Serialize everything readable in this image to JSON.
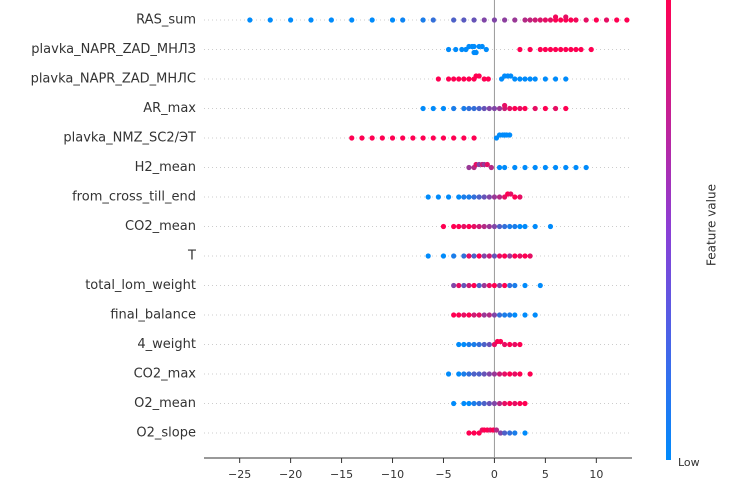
{
  "chart_data": {
    "type": "beeswarm",
    "xlim": [
      -28.5,
      13.5
    ],
    "xticks": [
      {
        "value": -25,
        "label": "−25"
      },
      {
        "value": -20,
        "label": "−20"
      },
      {
        "value": -15,
        "label": "−15"
      },
      {
        "value": -10,
        "label": "−10"
      },
      {
        "value": -5,
        "label": "−5"
      },
      0,
      5,
      10
    ],
    "colorbar": {
      "label": "Feature value",
      "low_label": "Low",
      "low_color": "#008bfb",
      "high_color": "#ff0052"
    },
    "series": [
      {
        "name": "RAS_sum",
        "values": [
          -24,
          -22,
          -20,
          -18,
          -16,
          -14,
          -12,
          -10,
          -9,
          -7,
          -6,
          -4,
          -3,
          -2,
          -1,
          0,
          1,
          2,
          3,
          3.5,
          4,
          4.5,
          5,
          5.5,
          6,
          6,
          6.5,
          7,
          7,
          7.5,
          8,
          9,
          10,
          11,
          12,
          13
        ],
        "feature_values": [
          0,
          0,
          0,
          0,
          0,
          0,
          0,
          0,
          0.05,
          0.1,
          0.2,
          0.3,
          0.35,
          0.4,
          0.5,
          0.5,
          0.55,
          0.6,
          0.7,
          0.75,
          0.8,
          0.85,
          0.9,
          0.9,
          1,
          0.95,
          1,
          1,
          0.9,
          1,
          0.95,
          0.9,
          1,
          0.9,
          1,
          1
        ]
      },
      {
        "name": "plavka_NAPR_ZAD_МНЛЗ",
        "values": [
          -4.5,
          -3.8,
          -3.2,
          -2.8,
          -2.5,
          -2.2,
          -2,
          -2,
          -1.8,
          -1.5,
          -1.2,
          -0.8,
          2.5,
          3.5,
          4.5,
          5,
          5.5,
          6,
          6.5,
          7,
          7.5,
          8,
          8.5,
          9.5
        ],
        "feature_values": [
          0,
          0,
          0,
          0,
          0,
          0,
          0,
          0,
          0,
          0,
          0,
          0,
          1,
          1,
          1,
          1,
          1,
          1,
          1,
          1,
          1,
          1,
          1,
          1
        ]
      },
      {
        "name": "plavka_NAPR_ZAD_МНЛС",
        "values": [
          -5.5,
          -4.5,
          -4,
          -3.5,
          -3,
          -2.5,
          -2,
          -1.8,
          -1.5,
          -1,
          -0.6,
          0.7,
          1,
          1.3,
          1.6,
          2,
          2.5,
          3,
          3.5,
          4,
          5,
          6,
          7
        ],
        "feature_values": [
          1,
          1,
          1,
          1,
          1,
          1,
          1,
          1,
          1,
          1,
          1,
          0,
          0,
          0,
          0,
          0,
          0,
          0,
          0,
          0,
          0,
          0,
          0
        ]
      },
      {
        "name": "AR_max",
        "values": [
          -7,
          -6,
          -5,
          -4,
          -3,
          -2.5,
          -2,
          -1.5,
          -1,
          -0.5,
          0,
          0.5,
          1,
          1,
          1.5,
          2,
          2.5,
          3,
          4,
          5,
          6,
          7
        ],
        "feature_values": [
          0,
          0,
          0,
          0.1,
          0.1,
          0.2,
          0.2,
          0.3,
          0.4,
          0.5,
          0.5,
          0.6,
          0.8,
          0.9,
          0.9,
          1,
          0.9,
          1,
          0.9,
          1,
          0.9,
          1
        ]
      },
      {
        "name": "plavka_NMZ_SC2/ЭТ",
        "values": [
          -14,
          -13,
          -12,
          -11,
          -10,
          -9,
          -8,
          -7,
          -6,
          -5,
          -4,
          -3,
          -2,
          0.2,
          0.5,
          0.8,
          1,
          1.2,
          1.5
        ],
        "feature_values": [
          1,
          1,
          1,
          1,
          1,
          1,
          1,
          1,
          1,
          1,
          1,
          1,
          1,
          0,
          0,
          0,
          0,
          0,
          0
        ]
      },
      {
        "name": "H2_mean",
        "values": [
          -2.5,
          -2,
          -1.8,
          -1.5,
          -1.2,
          -1,
          -0.7,
          -0.3,
          0.5,
          1,
          2,
          3,
          4,
          5,
          6,
          7,
          8,
          9
        ],
        "feature_values": [
          0.6,
          0.7,
          0.9,
          0.5,
          0.8,
          0.6,
          0.9,
          0.7,
          0,
          0,
          0,
          0,
          0,
          0,
          0,
          0,
          0,
          0
        ]
      },
      {
        "name": "from_cross_till_end",
        "values": [
          -6.5,
          -5.5,
          -4.5,
          -3.5,
          -3,
          -2.5,
          -2,
          -1.5,
          -1,
          -0.5,
          0,
          0.5,
          1,
          1.3,
          1.6,
          2,
          2.5
        ],
        "feature_values": [
          0,
          0,
          0,
          0,
          0.1,
          0.1,
          0.2,
          0.3,
          0.4,
          0.5,
          0.6,
          0.7,
          0.9,
          1,
          0.9,
          1,
          0.9
        ]
      },
      {
        "name": "CO2_mean",
        "values": [
          -5,
          -4,
          -3.5,
          -3,
          -2.5,
          -2,
          -1.5,
          -1,
          -0.5,
          0,
          0.5,
          1,
          1.5,
          2,
          2.5,
          3,
          4,
          5.5
        ],
        "feature_values": [
          1,
          1,
          1,
          0.9,
          1,
          0.9,
          0.8,
          0.7,
          0.6,
          0.5,
          0.3,
          0.2,
          0.1,
          0.1,
          0,
          0,
          0,
          0
        ]
      },
      {
        "name": "T",
        "values": [
          -6.5,
          -5,
          -4,
          -3,
          -2.5,
          -2,
          -1.5,
          -1,
          -0.5,
          0,
          0.5,
          1,
          1.5,
          2,
          2.5,
          3,
          3.5
        ],
        "feature_values": [
          0,
          0,
          0.1,
          0.2,
          0.9,
          0.3,
          1,
          0.5,
          0.8,
          0.4,
          0.9,
          1,
          0.6,
          1,
          0.9,
          1,
          0.9
        ]
      },
      {
        "name": "total_lom_weight",
        "values": [
          -4,
          -3.5,
          -3,
          -2.5,
          -2,
          -1.5,
          -1,
          -0.5,
          0,
          0.5,
          1,
          1.5,
          2,
          3,
          4.5
        ],
        "feature_values": [
          0.5,
          0.9,
          0.4,
          0.8,
          1,
          0.3,
          0.6,
          0.9,
          1,
          0.5,
          1,
          0.2,
          0.1,
          0,
          0
        ]
      },
      {
        "name": "final_balance",
        "values": [
          -4,
          -3.5,
          -3,
          -2.5,
          -2,
          -1.5,
          -1,
          -0.5,
          0,
          0.5,
          1,
          1.5,
          2,
          3,
          4
        ],
        "feature_values": [
          1,
          1,
          0.9,
          1,
          0.8,
          0.9,
          0.6,
          0.7,
          0.5,
          0.2,
          0.1,
          0.1,
          0,
          0,
          0
        ]
      },
      {
        "name": "4_weight",
        "values": [
          -3.5,
          -3,
          -2.5,
          -2,
          -1.5,
          -1,
          -0.5,
          0,
          0.3,
          0.6,
          1,
          1.5,
          2,
          2.5
        ],
        "feature_values": [
          0,
          0,
          0.1,
          0.1,
          0.2,
          0.3,
          0.4,
          0.9,
          1,
          1,
          0.9,
          1,
          0.9,
          1
        ]
      },
      {
        "name": "CO2_max",
        "values": [
          -4.5,
          -3.5,
          -3,
          -2.5,
          -2,
          -1.5,
          -1,
          -0.5,
          0,
          0.5,
          1,
          1.5,
          2,
          2.5,
          3.5
        ],
        "feature_values": [
          0,
          0,
          0.1,
          0.2,
          0.3,
          0.3,
          0.4,
          0.5,
          0.6,
          0.8,
          0.9,
          1,
          0.9,
          1,
          1
        ]
      },
      {
        "name": "O2_mean",
        "values": [
          -4,
          -3,
          -2.5,
          -2,
          -1.5,
          -1,
          -0.5,
          0,
          0.5,
          1,
          1.5,
          2,
          2.5,
          3
        ],
        "feature_values": [
          0,
          0,
          0,
          0.1,
          0.2,
          0.3,
          0.4,
          0.5,
          0.7,
          0.9,
          1,
          0.9,
          1,
          1
        ]
      },
      {
        "name": "O2_slope",
        "values": [
          -2.5,
          -2,
          -1.5,
          -1.2,
          -1,
          -0.7,
          -0.4,
          -0.1,
          0.2,
          0.6,
          1,
          1.5,
          2,
          3
        ],
        "feature_values": [
          1,
          1,
          1,
          0.9,
          1,
          1,
          0.9,
          1,
          0.7,
          0.5,
          0.3,
          0.2,
          0.1,
          0
        ]
      }
    ]
  }
}
